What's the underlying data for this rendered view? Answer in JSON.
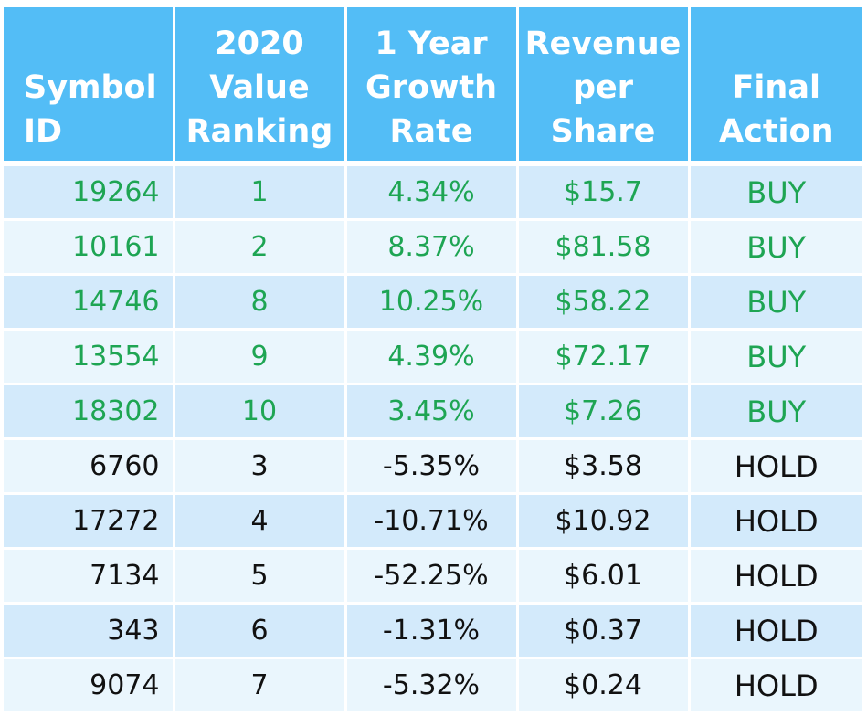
{
  "headers": {
    "symbol": [
      "Symbol",
      "ID"
    ],
    "ranking": [
      "2020",
      "Value",
      "Ranking"
    ],
    "growth": [
      "1 Year",
      "Growth",
      "Rate"
    ],
    "revenue": [
      "Revenue",
      "per",
      "Share"
    ],
    "action": [
      "Final",
      "Action"
    ]
  },
  "colors": {
    "header_bg": "#53bdf6",
    "row_odd": "#d3eafb",
    "row_even": "#eaf6fd",
    "buy_text": "#1ea553",
    "hold_text": "#111111"
  },
  "rows": [
    {
      "symbol": "19264",
      "ranking": "1",
      "growth": "4.34%",
      "revenue": "$15.7",
      "action": "BUY"
    },
    {
      "symbol": "10161",
      "ranking": "2",
      "growth": "8.37%",
      "revenue": "$81.58",
      "action": "BUY"
    },
    {
      "symbol": "14746",
      "ranking": "8",
      "growth": "10.25%",
      "revenue": "$58.22",
      "action": "BUY"
    },
    {
      "symbol": "13554",
      "ranking": "9",
      "growth": "4.39%",
      "revenue": "$72.17",
      "action": "BUY"
    },
    {
      "symbol": "18302",
      "ranking": "10",
      "growth": "3.45%",
      "revenue": "$7.26",
      "action": "BUY"
    },
    {
      "symbol": "6760",
      "ranking": "3",
      "growth": "-5.35%",
      "revenue": "$3.58",
      "action": "HOLD"
    },
    {
      "symbol": "17272",
      "ranking": "4",
      "growth": "-10.71%",
      "revenue": "$10.92",
      "action": "HOLD"
    },
    {
      "symbol": "7134",
      "ranking": "5",
      "growth": "-52.25%",
      "revenue": "$6.01",
      "action": "HOLD"
    },
    {
      "symbol": "343",
      "ranking": "6",
      "growth": "-1.31%",
      "revenue": "$0.37",
      "action": "HOLD"
    },
    {
      "symbol": "9074",
      "ranking": "7",
      "growth": "-5.32%",
      "revenue": "$0.24",
      "action": "HOLD"
    }
  ]
}
